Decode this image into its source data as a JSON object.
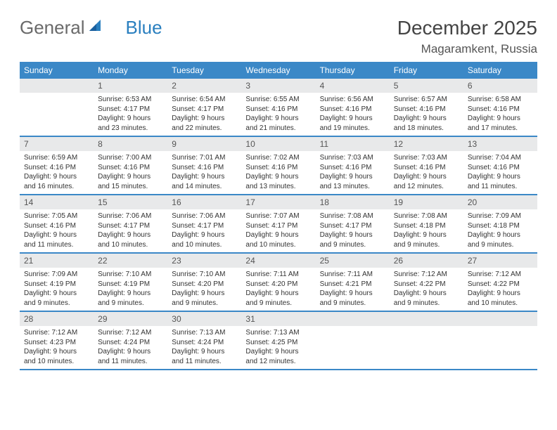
{
  "brand": {
    "part1": "General",
    "part2": "Blue"
  },
  "title": "December 2025",
  "location": "Magaramkent, Russia",
  "day_headers": [
    "Sunday",
    "Monday",
    "Tuesday",
    "Wednesday",
    "Thursday",
    "Friday",
    "Saturday"
  ],
  "colors": {
    "header_bg": "#3b88c7",
    "rule": "#3b88c7",
    "daynum_bg": "#e8e9ea"
  },
  "weeks": [
    [
      null,
      {
        "n": "1",
        "sr": "6:53 AM",
        "ss": "4:17 PM",
        "dl": "9 hours and 23 minutes."
      },
      {
        "n": "2",
        "sr": "6:54 AM",
        "ss": "4:17 PM",
        "dl": "9 hours and 22 minutes."
      },
      {
        "n": "3",
        "sr": "6:55 AM",
        "ss": "4:16 PM",
        "dl": "9 hours and 21 minutes."
      },
      {
        "n": "4",
        "sr": "6:56 AM",
        "ss": "4:16 PM",
        "dl": "9 hours and 19 minutes."
      },
      {
        "n": "5",
        "sr": "6:57 AM",
        "ss": "4:16 PM",
        "dl": "9 hours and 18 minutes."
      },
      {
        "n": "6",
        "sr": "6:58 AM",
        "ss": "4:16 PM",
        "dl": "9 hours and 17 minutes."
      }
    ],
    [
      {
        "n": "7",
        "sr": "6:59 AM",
        "ss": "4:16 PM",
        "dl": "9 hours and 16 minutes."
      },
      {
        "n": "8",
        "sr": "7:00 AM",
        "ss": "4:16 PM",
        "dl": "9 hours and 15 minutes."
      },
      {
        "n": "9",
        "sr": "7:01 AM",
        "ss": "4:16 PM",
        "dl": "9 hours and 14 minutes."
      },
      {
        "n": "10",
        "sr": "7:02 AM",
        "ss": "4:16 PM",
        "dl": "9 hours and 13 minutes."
      },
      {
        "n": "11",
        "sr": "7:03 AM",
        "ss": "4:16 PM",
        "dl": "9 hours and 13 minutes."
      },
      {
        "n": "12",
        "sr": "7:03 AM",
        "ss": "4:16 PM",
        "dl": "9 hours and 12 minutes."
      },
      {
        "n": "13",
        "sr": "7:04 AM",
        "ss": "4:16 PM",
        "dl": "9 hours and 11 minutes."
      }
    ],
    [
      {
        "n": "14",
        "sr": "7:05 AM",
        "ss": "4:16 PM",
        "dl": "9 hours and 11 minutes."
      },
      {
        "n": "15",
        "sr": "7:06 AM",
        "ss": "4:17 PM",
        "dl": "9 hours and 10 minutes."
      },
      {
        "n": "16",
        "sr": "7:06 AM",
        "ss": "4:17 PM",
        "dl": "9 hours and 10 minutes."
      },
      {
        "n": "17",
        "sr": "7:07 AM",
        "ss": "4:17 PM",
        "dl": "9 hours and 10 minutes."
      },
      {
        "n": "18",
        "sr": "7:08 AM",
        "ss": "4:17 PM",
        "dl": "9 hours and 9 minutes."
      },
      {
        "n": "19",
        "sr": "7:08 AM",
        "ss": "4:18 PM",
        "dl": "9 hours and 9 minutes."
      },
      {
        "n": "20",
        "sr": "7:09 AM",
        "ss": "4:18 PM",
        "dl": "9 hours and 9 minutes."
      }
    ],
    [
      {
        "n": "21",
        "sr": "7:09 AM",
        "ss": "4:19 PM",
        "dl": "9 hours and 9 minutes."
      },
      {
        "n": "22",
        "sr": "7:10 AM",
        "ss": "4:19 PM",
        "dl": "9 hours and 9 minutes."
      },
      {
        "n": "23",
        "sr": "7:10 AM",
        "ss": "4:20 PM",
        "dl": "9 hours and 9 minutes."
      },
      {
        "n": "24",
        "sr": "7:11 AM",
        "ss": "4:20 PM",
        "dl": "9 hours and 9 minutes."
      },
      {
        "n": "25",
        "sr": "7:11 AM",
        "ss": "4:21 PM",
        "dl": "9 hours and 9 minutes."
      },
      {
        "n": "26",
        "sr": "7:12 AM",
        "ss": "4:22 PM",
        "dl": "9 hours and 9 minutes."
      },
      {
        "n": "27",
        "sr": "7:12 AM",
        "ss": "4:22 PM",
        "dl": "9 hours and 10 minutes."
      }
    ],
    [
      {
        "n": "28",
        "sr": "7:12 AM",
        "ss": "4:23 PM",
        "dl": "9 hours and 10 minutes."
      },
      {
        "n": "29",
        "sr": "7:12 AM",
        "ss": "4:24 PM",
        "dl": "9 hours and 11 minutes."
      },
      {
        "n": "30",
        "sr": "7:13 AM",
        "ss": "4:24 PM",
        "dl": "9 hours and 11 minutes."
      },
      {
        "n": "31",
        "sr": "7:13 AM",
        "ss": "4:25 PM",
        "dl": "9 hours and 12 minutes."
      },
      null,
      null,
      null
    ]
  ],
  "labels": {
    "sunrise": "Sunrise:",
    "sunset": "Sunset:",
    "daylight": "Daylight:"
  }
}
